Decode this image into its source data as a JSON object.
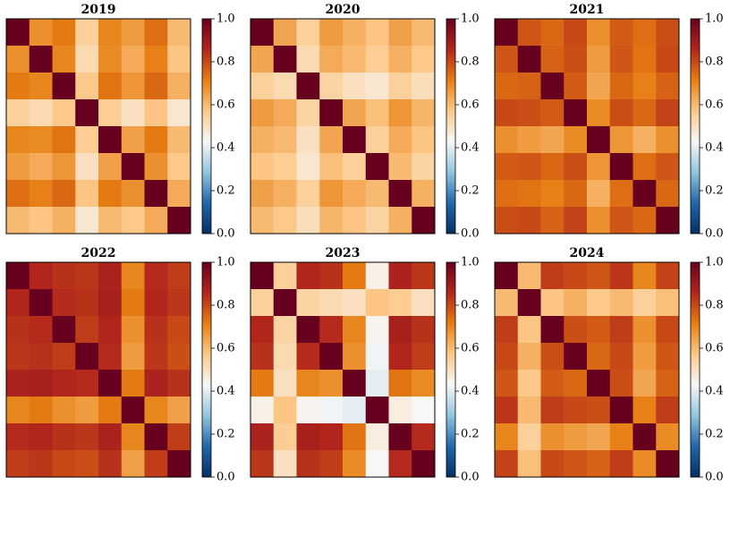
{
  "chart_data": [
    {
      "type": "heatmap",
      "title": "2019",
      "zlim": [
        0,
        1
      ],
      "zticks": [
        {
          "value": 0,
          "label": "0.0"
        },
        0.2,
        0.4,
        0.6,
        0.8,
        {
          "value": 1,
          "label": "1.0"
        }
      ],
      "cmap": [
        "#053061",
        "#2166ac",
        "#92c5de",
        "#f7f7f7",
        "#fdc98a",
        "#e67e12",
        "#b2261c",
        "#67001f"
      ],
      "matrix": [
        [
          1,
          0.68,
          0.72,
          0.55,
          0.7,
          0.66,
          0.74,
          0.6
        ],
        [
          0.68,
          1,
          0.7,
          0.52,
          0.69,
          0.63,
          0.71,
          0.58
        ],
        [
          0.72,
          0.7,
          1,
          0.57,
          0.73,
          0.67,
          0.75,
          0.62
        ],
        [
          0.55,
          0.52,
          0.57,
          1,
          0.56,
          0.5,
          0.58,
          0.48
        ],
        [
          0.7,
          0.69,
          0.73,
          0.56,
          1,
          0.65,
          0.72,
          0.6
        ],
        [
          0.66,
          0.63,
          0.67,
          0.5,
          0.65,
          1,
          0.68,
          0.57
        ],
        [
          0.74,
          0.71,
          0.75,
          0.58,
          0.72,
          0.68,
          1,
          0.63
        ],
        [
          0.6,
          0.58,
          0.62,
          0.48,
          0.6,
          0.57,
          0.63,
          1
        ]
      ]
    },
    {
      "type": "heatmap",
      "title": "2020",
      "zlim": [
        0,
        1
      ],
      "zticks": [
        {
          "value": 0,
          "label": "0.0"
        },
        0.2,
        0.4,
        0.6,
        0.8,
        {
          "value": 1,
          "label": "1.0"
        }
      ],
      "cmap": [
        "#053061",
        "#2166ac",
        "#92c5de",
        "#f7f7f7",
        "#fdc98a",
        "#e67e12",
        "#b2261c",
        "#67001f"
      ],
      "matrix": [
        [
          1,
          0.64,
          0.55,
          0.66,
          0.62,
          0.58,
          0.65,
          0.6
        ],
        [
          0.64,
          1,
          0.52,
          0.63,
          0.6,
          0.56,
          0.62,
          0.57
        ],
        [
          0.55,
          0.52,
          1,
          0.54,
          0.5,
          0.48,
          0.55,
          0.51
        ],
        [
          0.66,
          0.63,
          0.54,
          1,
          0.64,
          0.59,
          0.67,
          0.61
        ],
        [
          0.62,
          0.6,
          0.5,
          0.64,
          1,
          0.55,
          0.63,
          0.58
        ],
        [
          0.58,
          0.56,
          0.48,
          0.59,
          0.55,
          1,
          0.6,
          0.54
        ],
        [
          0.65,
          0.62,
          0.55,
          0.67,
          0.63,
          0.6,
          1,
          0.62
        ],
        [
          0.6,
          0.57,
          0.51,
          0.61,
          0.58,
          0.54,
          0.62,
          1
        ]
      ]
    },
    {
      "type": "heatmap",
      "title": "2021",
      "zlim": [
        0,
        1
      ],
      "zticks": [
        {
          "value": 0,
          "label": "0.0"
        },
        0.2,
        0.4,
        0.6,
        0.8,
        {
          "value": 1,
          "label": "1.0"
        }
      ],
      "cmap": [
        "#053061",
        "#2166ac",
        "#92c5de",
        "#f7f7f7",
        "#fdc98a",
        "#e67e12",
        "#b2261c",
        "#67001f"
      ],
      "matrix": [
        [
          1,
          0.78,
          0.75,
          0.8,
          0.68,
          0.77,
          0.74,
          0.79
        ],
        [
          0.78,
          1,
          0.76,
          0.79,
          0.66,
          0.78,
          0.73,
          0.8
        ],
        [
          0.75,
          0.76,
          1,
          0.77,
          0.64,
          0.75,
          0.71,
          0.76
        ],
        [
          0.8,
          0.79,
          0.77,
          1,
          0.69,
          0.79,
          0.75,
          0.81
        ],
        [
          0.68,
          0.66,
          0.64,
          0.69,
          1,
          0.67,
          0.62,
          0.68
        ],
        [
          0.77,
          0.78,
          0.75,
          0.79,
          0.67,
          1,
          0.74,
          0.78
        ],
        [
          0.74,
          0.73,
          0.71,
          0.75,
          0.62,
          0.74,
          1,
          0.75
        ],
        [
          0.79,
          0.8,
          0.76,
          0.81,
          0.68,
          0.78,
          0.75,
          1
        ]
      ]
    },
    {
      "type": "heatmap",
      "title": "2022",
      "zlim": [
        0,
        1
      ],
      "zticks": [
        {
          "value": 0,
          "label": "0.0"
        },
        0.2,
        0.4,
        0.6,
        0.8,
        {
          "value": 1,
          "label": "1.0"
        }
      ],
      "cmap": [
        "#053061",
        "#2166ac",
        "#92c5de",
        "#f7f7f7",
        "#fdc98a",
        "#e67e12",
        "#b2261c",
        "#67001f"
      ],
      "matrix": [
        [
          1,
          0.86,
          0.84,
          0.83,
          0.87,
          0.7,
          0.85,
          0.82
        ],
        [
          0.86,
          1,
          0.85,
          0.84,
          0.88,
          0.72,
          0.86,
          0.83
        ],
        [
          0.84,
          0.85,
          1,
          0.82,
          0.86,
          0.68,
          0.84,
          0.8
        ],
        [
          0.83,
          0.84,
          0.82,
          1,
          0.85,
          0.66,
          0.83,
          0.79
        ],
        [
          0.87,
          0.88,
          0.86,
          0.85,
          1,
          0.72,
          0.87,
          0.84
        ],
        [
          0.7,
          0.72,
          0.68,
          0.66,
          0.72,
          1,
          0.7,
          0.65
        ],
        [
          0.85,
          0.86,
          0.84,
          0.83,
          0.87,
          0.7,
          1,
          0.82
        ],
        [
          0.82,
          0.83,
          0.8,
          0.79,
          0.84,
          0.65,
          0.82,
          1
        ]
      ]
    },
    {
      "type": "heatmap",
      "title": "2023",
      "zlim": [
        0,
        1
      ],
      "zticks": [
        {
          "value": 0,
          "label": "0.0"
        },
        0.2,
        0.4,
        0.6,
        0.8,
        {
          "value": 1,
          "label": "1.0"
        }
      ],
      "cmap": [
        "#053061",
        "#2166ac",
        "#92c5de",
        "#f7f7f7",
        "#fdc98a",
        "#e67e12",
        "#b2261c",
        "#67001f"
      ],
      "matrix": [
        [
          1,
          0.55,
          0.86,
          0.84,
          0.72,
          0.45,
          0.87,
          0.83
        ],
        [
          0.55,
          1,
          0.54,
          0.52,
          0.5,
          0.58,
          0.56,
          0.5
        ],
        [
          0.86,
          0.54,
          1,
          0.85,
          0.7,
          0.44,
          0.88,
          0.84
        ],
        [
          0.84,
          0.52,
          0.85,
          1,
          0.68,
          0.42,
          0.86,
          0.82
        ],
        [
          0.72,
          0.5,
          0.7,
          0.68,
          1,
          0.4,
          0.73,
          0.69
        ],
        [
          0.45,
          0.58,
          0.44,
          0.42,
          0.4,
          1,
          0.46,
          0.43
        ],
        [
          0.87,
          0.56,
          0.88,
          0.86,
          0.73,
          0.46,
          1,
          0.85
        ],
        [
          0.83,
          0.5,
          0.84,
          0.82,
          0.69,
          0.43,
          0.85,
          1
        ]
      ]
    },
    {
      "type": "heatmap",
      "title": "2024",
      "zlim": [
        0,
        1
      ],
      "zticks": [
        {
          "value": 0,
          "label": "0.0"
        },
        0.2,
        0.4,
        0.6,
        0.8,
        {
          "value": 1,
          "label": "1.0"
        }
      ],
      "cmap": [
        "#053061",
        "#2166ac",
        "#92c5de",
        "#f7f7f7",
        "#fdc98a",
        "#e67e12",
        "#b2261c",
        "#67001f"
      ],
      "matrix": [
        [
          1,
          0.6,
          0.82,
          0.8,
          0.78,
          0.83,
          0.7,
          0.81
        ],
        [
          0.6,
          1,
          0.58,
          0.62,
          0.57,
          0.6,
          0.55,
          0.59
        ],
        [
          0.82,
          0.58,
          1,
          0.79,
          0.77,
          0.82,
          0.68,
          0.8
        ],
        [
          0.8,
          0.62,
          0.79,
          1,
          0.75,
          0.8,
          0.66,
          0.78
        ],
        [
          0.78,
          0.57,
          0.77,
          0.75,
          1,
          0.79,
          0.64,
          0.76
        ],
        [
          0.83,
          0.6,
          0.82,
          0.8,
          0.79,
          1,
          0.71,
          0.82
        ],
        [
          0.7,
          0.55,
          0.68,
          0.66,
          0.64,
          0.71,
          1,
          0.69
        ],
        [
          0.81,
          0.59,
          0.8,
          0.78,
          0.76,
          0.82,
          0.69,
          1
        ]
      ]
    }
  ]
}
